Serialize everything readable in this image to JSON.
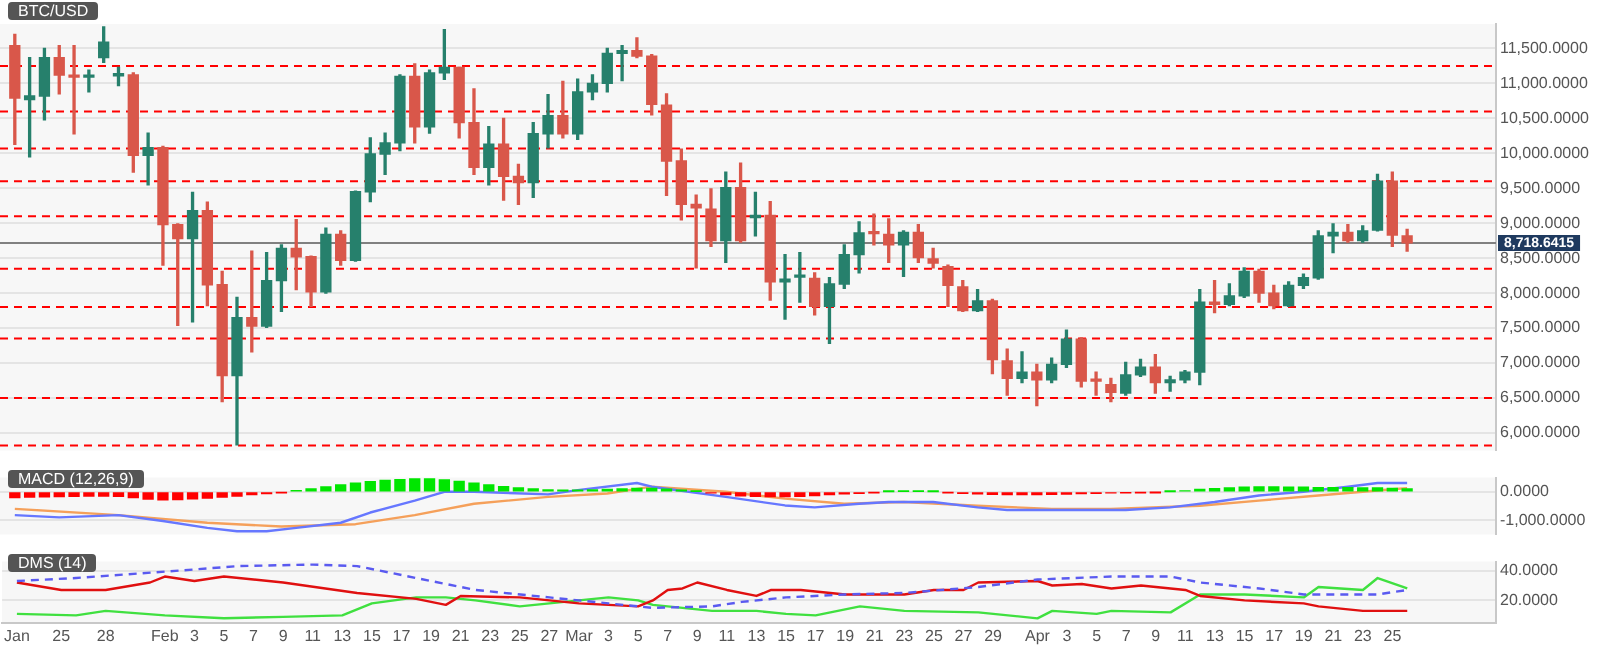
{
  "chart_data": [
    {
      "type": "candlestick",
      "title": "BTC/USD",
      "grid": "y",
      "tick_labels": "y",
      "xlim": [
        "--01-21",
        "--05-02"
      ],
      "ylim": [
        5750,
        11850
      ],
      "yticks": [
        {
          "value": 6000,
          "label": "6,000.0000"
        },
        {
          "value": 6500,
          "label": "6,500.0000"
        },
        {
          "value": 7000,
          "label": "7,000.0000"
        },
        {
          "value": 7500,
          "label": "7,500.0000"
        },
        {
          "value": 8000,
          "label": "8,000.0000"
        },
        {
          "value": 8500,
          "label": "8,500.0000"
        },
        {
          "value": 9000,
          "label": "9,000.0000"
        },
        {
          "value": 9500,
          "label": "9,500.0000"
        },
        {
          "value": 10000,
          "label": "10,000.0000"
        },
        {
          "value": 10500,
          "label": "10,500.0000"
        },
        {
          "value": 11000,
          "label": "11,000.0000"
        },
        {
          "value": 11500,
          "label": "11,500.0000"
        }
      ],
      "x": [
        "--01-22",
        "--01-23",
        "--01-24",
        "--01-25",
        "--01-26",
        "--01-27",
        "--01-28",
        "--01-29",
        "--01-30",
        "--01-31",
        "--02-01",
        "--02-02",
        "--02-03",
        "--02-04",
        "--02-05",
        "--02-06",
        "--02-07",
        "--02-08",
        "--02-09",
        "--02-10",
        "--02-11",
        "--02-12",
        "--02-13",
        "--02-14",
        "--02-15",
        "--02-16",
        "--02-17",
        "--02-18",
        "--02-19",
        "--02-20",
        "--02-21",
        "--02-22",
        "--02-23",
        "--02-24",
        "--02-25",
        "--02-26",
        "--02-27",
        "--02-28",
        "--03-01",
        "--03-02",
        "--03-03",
        "--03-04",
        "--03-05",
        "--03-06",
        "--03-07",
        "--03-08",
        "--03-09",
        "--03-10",
        "--03-11",
        "--03-12",
        "--03-13",
        "--03-14",
        "--03-15",
        "--03-16",
        "--03-17",
        "--03-18",
        "--03-19",
        "--03-20",
        "--03-21",
        "--03-22",
        "--03-23",
        "--03-24",
        "--03-25",
        "--03-26",
        "--03-27",
        "--03-28",
        "--03-29",
        "--03-30",
        "--03-31",
        "--04-01",
        "--04-02",
        "--04-03",
        "--04-04",
        "--04-05",
        "--04-06",
        "--04-07",
        "--04-08",
        "--04-09",
        "--04-10",
        "--04-11",
        "--04-12",
        "--04-13",
        "--04-14",
        "--04-15",
        "--04-16",
        "--04-17",
        "--04-18",
        "--04-19",
        "--04-20",
        "--04-21",
        "--04-22",
        "--04-23",
        "--04-24",
        "--04-25",
        "--04-26"
      ],
      "ohlc": [
        [
          11540,
          11700,
          10130,
          10790
        ],
        [
          10770,
          11370,
          9950,
          10820
        ],
        [
          10820,
          11500,
          10480,
          11370
        ],
        [
          11370,
          11540,
          10850,
          11120
        ],
        [
          11110,
          11540,
          10280,
          11090
        ],
        [
          11090,
          11190,
          10880,
          11110
        ],
        [
          11370,
          11810,
          11300,
          11590
        ],
        [
          11110,
          11230,
          10970,
          11130
        ],
        [
          11120,
          11150,
          9730,
          9970
        ],
        [
          9970,
          10290,
          9550,
          10080
        ],
        [
          10080,
          10100,
          8400,
          8980
        ],
        [
          8980,
          8990,
          7540,
          8780
        ],
        [
          8780,
          9440,
          7590,
          9180
        ],
        [
          9180,
          9300,
          7820,
          8120
        ],
        [
          8120,
          8310,
          6450,
          6820
        ],
        [
          6820,
          7940,
          5830,
          7650
        ],
        [
          7650,
          8600,
          7160,
          7530
        ],
        [
          7530,
          8580,
          7510,
          8180
        ],
        [
          8180,
          8690,
          7740,
          8640
        ],
        [
          8640,
          9050,
          8050,
          8520
        ],
        [
          8520,
          8530,
          7810,
          8020
        ],
        [
          8020,
          8930,
          8000,
          8840
        ],
        [
          8840,
          8890,
          8400,
          8470
        ],
        [
          8470,
          9460,
          8460,
          9450
        ],
        [
          9450,
          10220,
          9310,
          9990
        ],
        [
          9990,
          10290,
          9700,
          10150
        ],
        [
          10150,
          11120,
          10040,
          11100
        ],
        [
          11100,
          11280,
          10150,
          10380
        ],
        [
          10380,
          11190,
          10290,
          11150
        ],
        [
          11150,
          11770,
          11060,
          11230
        ],
        [
          11230,
          11230,
          10220,
          10440
        ],
        [
          10440,
          10920,
          9700,
          9800
        ],
        [
          9800,
          10380,
          9550,
          10130
        ],
        [
          10130,
          10500,
          9330,
          9670
        ],
        [
          9670,
          9840,
          9270,
          9580
        ],
        [
          9580,
          10440,
          9370,
          10280
        ],
        [
          10280,
          10840,
          10080,
          10540
        ],
        [
          10540,
          11030,
          10220,
          10280
        ],
        [
          10280,
          11060,
          10200,
          10880
        ],
        [
          10880,
          11120,
          10770,
          11000
        ],
        [
          11000,
          11500,
          10880,
          11430
        ],
        [
          11430,
          11540,
          11040,
          11470
        ],
        [
          11470,
          11650,
          11370,
          11390
        ],
        [
          11390,
          11410,
          10550,
          10700
        ],
        [
          10690,
          10850,
          9400,
          9890
        ],
        [
          9890,
          10060,
          9050,
          9270
        ],
        [
          9270,
          9400,
          8360,
          9220
        ],
        [
          9200,
          9490,
          8670,
          8750
        ],
        [
          8750,
          9730,
          8440,
          9510
        ],
        [
          9510,
          9860,
          8730,
          8750
        ],
        [
          9080,
          9440,
          8820,
          9110
        ],
        [
          9110,
          9310,
          7900,
          8160
        ],
        [
          8160,
          8550,
          7630,
          8200
        ],
        [
          8230,
          8580,
          7870,
          8250
        ],
        [
          8210,
          8290,
          7690,
          7810
        ],
        [
          7810,
          8220,
          7280,
          8130
        ],
        [
          8130,
          8690,
          8070,
          8550
        ],
        [
          8550,
          9020,
          8290,
          8860
        ],
        [
          8870,
          9130,
          8690,
          8850
        ],
        [
          8840,
          9060,
          8440,
          8690
        ],
        [
          8690,
          8890,
          8240,
          8870
        ],
        [
          8870,
          8980,
          8440,
          8510
        ],
        [
          8490,
          8640,
          8360,
          8430
        ],
        [
          8380,
          8400,
          7810,
          8110
        ],
        [
          8090,
          8180,
          7740,
          7750
        ],
        [
          7750,
          8050,
          7740,
          7890
        ],
        [
          7890,
          7910,
          6850,
          7050
        ],
        [
          7030,
          7200,
          6540,
          6780
        ],
        [
          6780,
          7160,
          6720,
          6870
        ],
        [
          6870,
          6980,
          6390,
          6760
        ],
        [
          6760,
          7070,
          6720,
          6980
        ],
        [
          6980,
          7470,
          6940,
          7340
        ],
        [
          7340,
          7360,
          6660,
          6740
        ],
        [
          6750,
          6870,
          6540,
          6740
        ],
        [
          6690,
          6780,
          6450,
          6580
        ],
        [
          6570,
          7010,
          6540,
          6830
        ],
        [
          6830,
          7050,
          6810,
          6940
        ],
        [
          6940,
          7120,
          6570,
          6720
        ],
        [
          6720,
          6810,
          6600,
          6760
        ],
        [
          6760,
          6890,
          6720,
          6870
        ],
        [
          6870,
          8050,
          6690,
          7870
        ],
        [
          7870,
          8180,
          7720,
          7840
        ],
        [
          7840,
          8130,
          7820,
          7960
        ],
        [
          7960,
          8360,
          7940,
          8310
        ],
        [
          8310,
          8340,
          7870,
          8000
        ],
        [
          8000,
          8110,
          7780,
          7820
        ],
        [
          7820,
          8160,
          7810,
          8110
        ],
        [
          8110,
          8270,
          8070,
          8220
        ],
        [
          8220,
          8890,
          8200,
          8820
        ],
        [
          8820,
          8990,
          8580,
          8870
        ],
        [
          8870,
          8980,
          8730,
          8750
        ],
        [
          8750,
          8960,
          8730,
          8890
        ],
        [
          8900,
          9700,
          8890,
          9600
        ],
        [
          9600,
          9730,
          8670,
          8830
        ],
        [
          8820,
          8910,
          8600,
          8720
        ]
      ],
      "colors": [
        "#d9574a",
        "#26806c",
        "#26806c",
        "#d9574a",
        "#d9574a",
        "#26806c",
        "#26806c",
        "#26806c",
        "#d9574a",
        "#26806c",
        "#d9574a",
        "#d9574a",
        "#26806c",
        "#d9574a",
        "#d9574a",
        "#26806c",
        "#d9574a",
        "#26806c",
        "#26806c",
        "#d9574a",
        "#d9574a",
        "#26806c",
        "#d9574a",
        "#26806c",
        "#26806c",
        "#26806c",
        "#26806c",
        "#d9574a",
        "#26806c",
        "#26806c",
        "#d9574a",
        "#d9574a",
        "#26806c",
        "#d9574a",
        "#d9574a",
        "#26806c",
        "#26806c",
        "#d9574a",
        "#26806c",
        "#26806c",
        "#26806c",
        "#26806c",
        "#d9574a",
        "#d9574a",
        "#d9574a",
        "#d9574a",
        "#d9574a",
        "#d9574a",
        "#26806c",
        "#d9574a",
        "#26806c",
        "#d9574a",
        "#26806c",
        "#26806c",
        "#d9574a",
        "#26806c",
        "#26806c",
        "#26806c",
        "#d9574a",
        "#d9574a",
        "#26806c",
        "#d9574a",
        "#d9574a",
        "#d9574a",
        "#d9574a",
        "#26806c",
        "#d9574a",
        "#d9574a",
        "#26806c",
        "#d9574a",
        "#26806c",
        "#26806c",
        "#d9574a",
        "#d9574a",
        "#d9574a",
        "#26806c",
        "#26806c",
        "#d9574a",
        "#26806c",
        "#26806c",
        "#26806c",
        "#d9574a",
        "#26806c",
        "#26806c",
        "#d9574a",
        "#d9574a",
        "#26806c",
        "#26806c",
        "#26806c",
        "#26806c",
        "#d9574a",
        "#26806c",
        "#26806c",
        "#d9574a",
        "#d9574a"
      ],
      "ref_lines": [
        {
          "axis": "y",
          "value": 11250,
          "color": "#ff0000",
          "line_style": "dashed"
        },
        {
          "axis": "y",
          "value": 10600,
          "color": "#ff0000",
          "line_style": "dashed"
        },
        {
          "axis": "y",
          "value": 10070,
          "color": "#ff0000",
          "line_style": "dashed"
        },
        {
          "axis": "y",
          "value": 9600,
          "color": "#ff0000",
          "line_style": "dashed"
        },
        {
          "axis": "y",
          "value": 9100,
          "color": "#ff0000",
          "line_style": "dashed"
        },
        {
          "axis": "y",
          "value": 8350,
          "color": "#ff0000",
          "line_style": "dashed"
        },
        {
          "axis": "y",
          "value": 7800,
          "color": "#ff0000",
          "line_style": "dashed"
        },
        {
          "axis": "y",
          "value": 7350,
          "color": "#ff0000",
          "line_style": "dashed"
        },
        {
          "axis": "y",
          "value": 6500,
          "color": "#ff0000",
          "line_style": "dashed"
        },
        {
          "axis": "y",
          "value": 5820,
          "color": "#ff0000",
          "line_style": "dashed"
        },
        {
          "axis": "y",
          "value": 8718.6415,
          "label": "8,718.6415",
          "color": "#808080",
          "line_style": "solid"
        }
      ]
    },
    {
      "type": "bar",
      "title": "MACD (12,26,9)",
      "grid": "y",
      "tick_labels": "y",
      "marker": "none",
      "xlim": [
        "--01-21",
        "--05-02"
      ],
      "ylim": [
        -1500,
        500
      ],
      "yticks": [
        {
          "value": 0,
          "label": "0.0000"
        },
        {
          "value": -1000,
          "label": "-1,000.0000"
        }
      ],
      "x": [
        "--01-22",
        "--01-23",
        "--01-24",
        "--01-25",
        "--01-26",
        "--01-27",
        "--01-28",
        "--01-29",
        "--01-30",
        "--01-31",
        "--02-01",
        "--02-02",
        "--02-03",
        "--02-04",
        "--02-05",
        "--02-06",
        "--02-07",
        "--02-08",
        "--02-09",
        "--02-10",
        "--02-11",
        "--02-12",
        "--02-13",
        "--02-14",
        "--02-15",
        "--02-16",
        "--02-17",
        "--02-18",
        "--02-19",
        "--02-20",
        "--02-21",
        "--02-22",
        "--02-23",
        "--02-24",
        "--02-25",
        "--02-26",
        "--02-27",
        "--02-28",
        "--03-01",
        "--03-02",
        "--03-03",
        "--03-04",
        "--03-05",
        "--03-06",
        "--03-07",
        "--03-08",
        "--03-09",
        "--03-10",
        "--03-11",
        "--03-12",
        "--03-13",
        "--03-14",
        "--03-15",
        "--03-16",
        "--03-17",
        "--03-18",
        "--03-19",
        "--03-20",
        "--03-21",
        "--03-22",
        "--03-23",
        "--03-24",
        "--03-25",
        "--03-26",
        "--03-27",
        "--03-28",
        "--03-29",
        "--03-30",
        "--03-31",
        "--04-01",
        "--04-02",
        "--04-03",
        "--04-04",
        "--04-05",
        "--04-06",
        "--04-07",
        "--04-08",
        "--04-09",
        "--04-10",
        "--04-11",
        "--04-12",
        "--04-13",
        "--04-14",
        "--04-15",
        "--04-16",
        "--04-17",
        "--04-18",
        "--04-19",
        "--04-20",
        "--04-21",
        "--04-22",
        "--04-23",
        "--04-24",
        "--04-25",
        "--04-26"
      ],
      "series": [
        {
          "values": [
            -200,
            -190,
            -180,
            -170,
            -160,
            -150,
            -150,
            -160,
            -200,
            -260,
            -280,
            -270,
            -250,
            -220,
            -190,
            -150,
            -100,
            -60,
            -20,
            40,
            100,
            170,
            240,
            300,
            360,
            400,
            430,
            450,
            450,
            420,
            370,
            300,
            240,
            180,
            140,
            100,
            70,
            60,
            60,
            70,
            80,
            100,
            120,
            120,
            90,
            60,
            20,
            -40,
            -100,
            -140,
            -160,
            -170,
            -170,
            -160,
            -130,
            -100,
            -70,
            -50,
            -20,
            10,
            20,
            20,
            10,
            -20,
            -50,
            -70,
            -90,
            -100,
            -100,
            -100,
            -90,
            -80,
            -60,
            -50,
            -40,
            -30,
            -20,
            -10,
            10,
            30,
            80,
            110,
            140,
            160,
            170,
            170,
            160,
            160,
            150,
            150,
            150,
            140,
            140,
            120,
            100
          ],
          "colors": [
            "#ff0000",
            "#ff0000",
            "#ff0000",
            "#ff0000",
            "#ff0000",
            "#ff0000",
            "#ff0000",
            "#ff0000",
            "#ff0000",
            "#ff0000",
            "#ff0000",
            "#ff0000",
            "#ff0000",
            "#ff0000",
            "#ff0000",
            "#ff0000",
            "#ff0000",
            "#ff0000",
            "#ff0000",
            "#00e600",
            "#00e600",
            "#00e600",
            "#00e600",
            "#00e600",
            "#00e600",
            "#00e600",
            "#00e600",
            "#00e600",
            "#00e600",
            "#00e600",
            "#00e600",
            "#00e600",
            "#00e600",
            "#00e600",
            "#00e600",
            "#00e600",
            "#00e600",
            "#00e600",
            "#00e600",
            "#00e600",
            "#00e600",
            "#00e600",
            "#00e600",
            "#00e600",
            "#00e600",
            "#00e600",
            "#00e600",
            "#ff0000",
            "#ff0000",
            "#ff0000",
            "#ff0000",
            "#ff0000",
            "#ff0000",
            "#ff0000",
            "#ff0000",
            "#ff0000",
            "#ff0000",
            "#ff0000",
            "#ff0000",
            "#00e600",
            "#00e600",
            "#00e600",
            "#00e600",
            "#ff0000",
            "#ff0000",
            "#ff0000",
            "#ff0000",
            "#ff0000",
            "#ff0000",
            "#ff0000",
            "#ff0000",
            "#ff0000",
            "#ff0000",
            "#ff0000",
            "#ff0000",
            "#ff0000",
            "#ff0000",
            "#ff0000",
            "#00e600",
            "#00e600",
            "#00e600",
            "#00e600",
            "#00e600",
            "#00e600",
            "#00e600",
            "#00e600",
            "#00e600",
            "#00e600",
            "#00e600",
            "#00e600",
            "#00e600",
            "#00e600",
            "#00e600",
            "#00e600",
            "#00e600"
          ]
        },
        {
          "type": "line",
          "color": "#6677ff",
          "x": [
            "--01-22",
            "--01-25",
            "--01-29",
            "--02-01",
            "--02-04",
            "--02-06",
            "--02-08",
            "--02-10",
            "--02-13",
            "--02-15",
            "--02-18",
            "--02-20",
            "--02-22",
            "--02-27",
            "--03-01",
            "--03-05",
            "--03-06",
            "--03-11",
            "--03-15",
            "--03-17",
            "--03-20",
            "--03-22",
            "--03-25",
            "--03-28",
            "--03-30",
            "--04-04",
            "--04-07",
            "--04-10",
            "--04-13",
            "--04-16",
            "--04-19",
            "--04-22",
            "--04-24",
            "--04-26"
          ],
          "values": [
            -820,
            -900,
            -820,
            -1030,
            -1270,
            -1390,
            -1390,
            -1270,
            -1090,
            -730,
            -310,
            0,
            0,
            -90,
            60,
            310,
            180,
            -180,
            -480,
            -550,
            -420,
            -360,
            -360,
            -550,
            -640,
            -640,
            -640,
            -550,
            -360,
            -130,
            0,
            180,
            310,
            310
          ]
        },
        {
          "type": "line",
          "color": "#f5a05a",
          "x": [
            "--01-22",
            "--01-29",
            "--02-04",
            "--02-09",
            "--02-14",
            "--02-18",
            "--02-22",
            "--02-27",
            "--03-03",
            "--03-06",
            "--03-11",
            "--03-15",
            "--03-19",
            "--03-23",
            "--03-28",
            "--04-02",
            "--04-06",
            "--04-12",
            "--04-16",
            "--04-20",
            "--04-25",
            "--04-26"
          ],
          "values": [
            -600,
            -820,
            -1090,
            -1220,
            -1140,
            -820,
            -420,
            -180,
            -60,
            180,
            0,
            -240,
            -420,
            -360,
            -490,
            -600,
            -600,
            -490,
            -310,
            -130,
            90,
            130
          ]
        }
      ]
    },
    {
      "type": "line",
      "title": "DMS (14)",
      "grid": "y",
      "marker": "none",
      "xlim": [
        "--01-21",
        "--05-02"
      ],
      "ylim": [
        5,
        46
      ],
      "yticks": [
        {
          "value": 40,
          "label": "40.0000"
        },
        {
          "value": 20,
          "label": "20.0000"
        }
      ],
      "xticks": [
        {
          "value": "--01-22",
          "label": "Jan"
        },
        {
          "value": "--01-25",
          "label": "25"
        },
        {
          "value": "--01-28",
          "label": "28"
        },
        {
          "value": "--02-01",
          "label": "Feb"
        },
        {
          "value": "--02-03",
          "label": "3"
        },
        {
          "value": "--02-05",
          "label": "5"
        },
        {
          "value": "--02-07",
          "label": "7"
        },
        {
          "value": "--02-09",
          "label": "9"
        },
        {
          "value": "--02-11",
          "label": "11"
        },
        {
          "value": "--02-13",
          "label": "13"
        },
        {
          "value": "--02-15",
          "label": "15"
        },
        {
          "value": "--02-17",
          "label": "17"
        },
        {
          "value": "--02-19",
          "label": "19"
        },
        {
          "value": "--02-21",
          "label": "21"
        },
        {
          "value": "--02-23",
          "label": "23"
        },
        {
          "value": "--02-25",
          "label": "25"
        },
        {
          "value": "--02-27",
          "label": "27"
        },
        {
          "value": "--03-01",
          "label": "Mar"
        },
        {
          "value": "--03-03",
          "label": "3"
        },
        {
          "value": "--03-05",
          "label": "5"
        },
        {
          "value": "--03-07",
          "label": "7"
        },
        {
          "value": "--03-09",
          "label": "9"
        },
        {
          "value": "--03-11",
          "label": "11"
        },
        {
          "value": "--03-13",
          "label": "13"
        },
        {
          "value": "--03-15",
          "label": "15"
        },
        {
          "value": "--03-17",
          "label": "17"
        },
        {
          "value": "--03-19",
          "label": "19"
        },
        {
          "value": "--03-21",
          "label": "21"
        },
        {
          "value": "--03-23",
          "label": "23"
        },
        {
          "value": "--03-25",
          "label": "25"
        },
        {
          "value": "--03-27",
          "label": "27"
        },
        {
          "value": "--03-29",
          "label": "29"
        },
        {
          "value": "--04-01",
          "label": "Apr"
        },
        {
          "value": "--04-03",
          "label": "3"
        },
        {
          "value": "--04-05",
          "label": "5"
        },
        {
          "value": "--04-07",
          "label": "7"
        },
        {
          "value": "--04-09",
          "label": "9"
        },
        {
          "value": "--04-11",
          "label": "11"
        },
        {
          "value": "--04-13",
          "label": "13"
        },
        {
          "value": "--04-15",
          "label": "15"
        },
        {
          "value": "--04-17",
          "label": "17"
        },
        {
          "value": "--04-19",
          "label": "19"
        },
        {
          "value": "--04-21",
          "label": "21"
        },
        {
          "value": "--04-23",
          "label": "23"
        },
        {
          "value": "--04-25",
          "label": "25"
        }
      ],
      "series": [
        {
          "color": "#5a5af0",
          "line_style": "dashed",
          "x": [
            "--01-22",
            "--01-26",
            "--02-02",
            "--02-06",
            "--02-11",
            "--02-14",
            "--02-18",
            "--02-22",
            "--02-27",
            "--03-03",
            "--03-06",
            "--03-10",
            "--03-12",
            "--03-15",
            "--03-19",
            "--03-23",
            "--03-28",
            "--04-01",
            "--04-06",
            "--04-10",
            "--04-12",
            "--04-16",
            "--04-19",
            "--04-24",
            "--04-26"
          ],
          "values": [
            33,
            35,
            40,
            43,
            44,
            43,
            35,
            27,
            22,
            18,
            15,
            16,
            19,
            22,
            24,
            25,
            29,
            34,
            36,
            36,
            32,
            28,
            24,
            24,
            27
          ]
        },
        {
          "color": "#e01010",
          "x": [
            "--01-22",
            "--01-25",
            "--01-28",
            "--01-31",
            "--02-01",
            "--02-03",
            "--02-05",
            "--02-09",
            "--02-14",
            "--02-18",
            "--02-20",
            "--02-21",
            "--02-25",
            "--03-01",
            "--03-05",
            "--03-06",
            "--03-07",
            "--03-08",
            "--03-09",
            "--03-11",
            "--03-13",
            "--03-14",
            "--03-16",
            "--03-19",
            "--03-23",
            "--03-25",
            "--03-27",
            "--03-28",
            "--04-01",
            "--04-02",
            "--04-04",
            "--04-06",
            "--04-08",
            "--04-11",
            "--04-12",
            "--04-15",
            "--04-19",
            "--04-20",
            "--04-23",
            "--04-26"
          ],
          "values": [
            32,
            27,
            27,
            32,
            36,
            33,
            36,
            32,
            25,
            21,
            17,
            23,
            22,
            18,
            16,
            20,
            27,
            28,
            32,
            27,
            23,
            27,
            27,
            24,
            24,
            27,
            27,
            32,
            33,
            30,
            31,
            28,
            30,
            27,
            23,
            20,
            18,
            16,
            13,
            13
          ]
        },
        {
          "color": "#40e040",
          "x": [
            "--01-22",
            "--01-26",
            "--01-28",
            "--02-01",
            "--02-05",
            "--02-09",
            "--02-13",
            "--02-15",
            "--02-18",
            "--02-20",
            "--02-22",
            "--02-25",
            "--03-01",
            "--03-03",
            "--03-05",
            "--03-06",
            "--03-10",
            "--03-13",
            "--03-15",
            "--03-17",
            "--03-19",
            "--03-20",
            "--03-23",
            "--03-28",
            "--04-01",
            "--04-02",
            "--04-05",
            "--04-06",
            "--04-10",
            "--04-12",
            "--04-15",
            "--04-19",
            "--04-20",
            "--04-23",
            "--04-24",
            "--04-26"
          ],
          "values": [
            11,
            10,
            13,
            10,
            8,
            9,
            10,
            18,
            22,
            22,
            20,
            16,
            20,
            22,
            20,
            17,
            13,
            13,
            11,
            10,
            14,
            16,
            13,
            12,
            8,
            13,
            11,
            13,
            12,
            24,
            24,
            22,
            29,
            27,
            35,
            28
          ]
        }
      ]
    }
  ]
}
